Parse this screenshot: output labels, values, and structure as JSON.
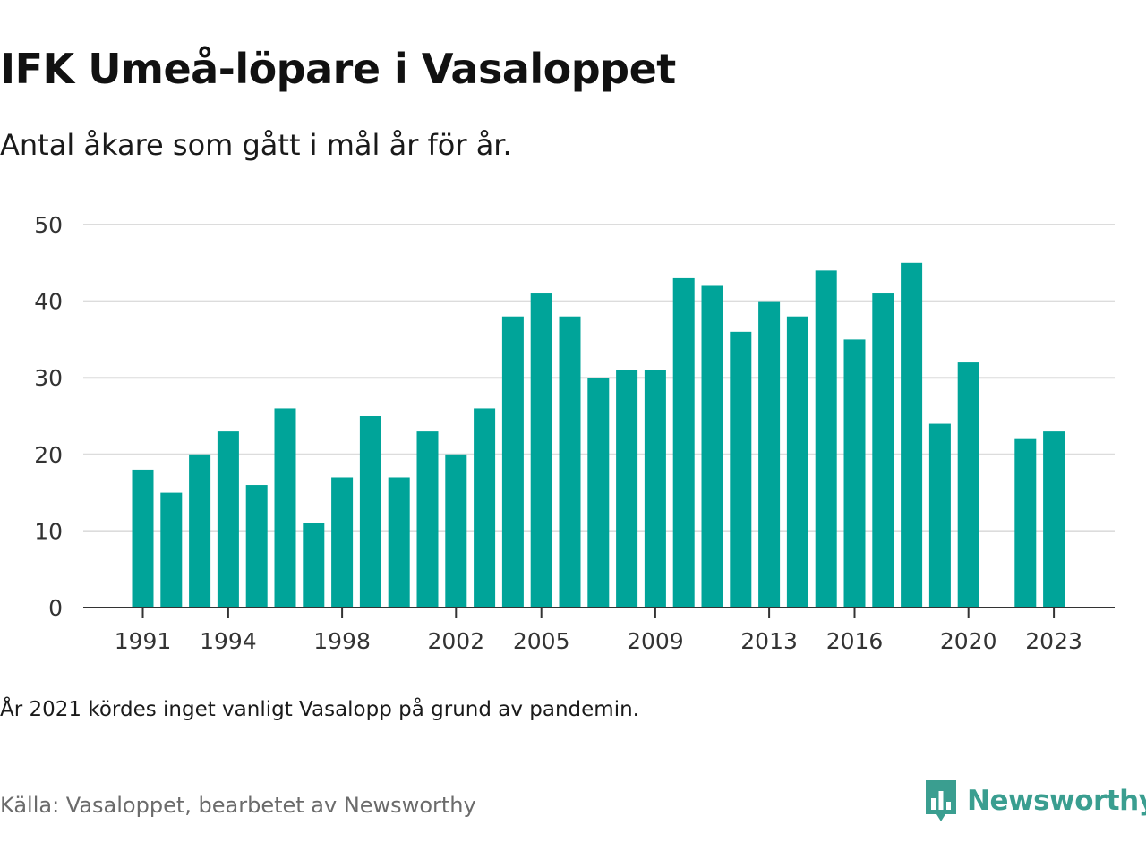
{
  "header": {
    "title": "IFK Umeå-löpare i Vasaloppet",
    "subtitle": "Antal åkare som gått i mål år för år."
  },
  "chart_data": {
    "type": "bar",
    "x": [
      1991,
      1992,
      1993,
      1994,
      1995,
      1996,
      1997,
      1998,
      1999,
      2000,
      2001,
      2002,
      2003,
      2004,
      2005,
      2006,
      2007,
      2008,
      2009,
      2010,
      2011,
      2012,
      2013,
      2014,
      2015,
      2016,
      2017,
      2018,
      2019,
      2020,
      2021,
      2022,
      2023
    ],
    "values": [
      18,
      15,
      20,
      23,
      16,
      26,
      11,
      17,
      25,
      17,
      23,
      20,
      26,
      38,
      41,
      38,
      30,
      31,
      31,
      43,
      42,
      36,
      40,
      38,
      44,
      35,
      41,
      45,
      24,
      32,
      null,
      22,
      23
    ],
    "x_tick_labels": [
      "1991",
      "1994",
      "1998",
      "2002",
      "2005",
      "2009",
      "2013",
      "2016",
      "2020",
      "2023"
    ],
    "y_ticks": [
      0,
      10,
      20,
      30,
      40,
      50
    ],
    "ylim": [
      0,
      50
    ],
    "bar_color": "#00a499",
    "grid": true
  },
  "footer": {
    "note": "År 2021 kördes inget vanligt Vasalopp på grund av pandemin.",
    "source": "Källa: Vasaloppet, bearbetet av Newsworthy",
    "logo_text": "Newsworthy",
    "logo_color": "#3a9e90"
  }
}
